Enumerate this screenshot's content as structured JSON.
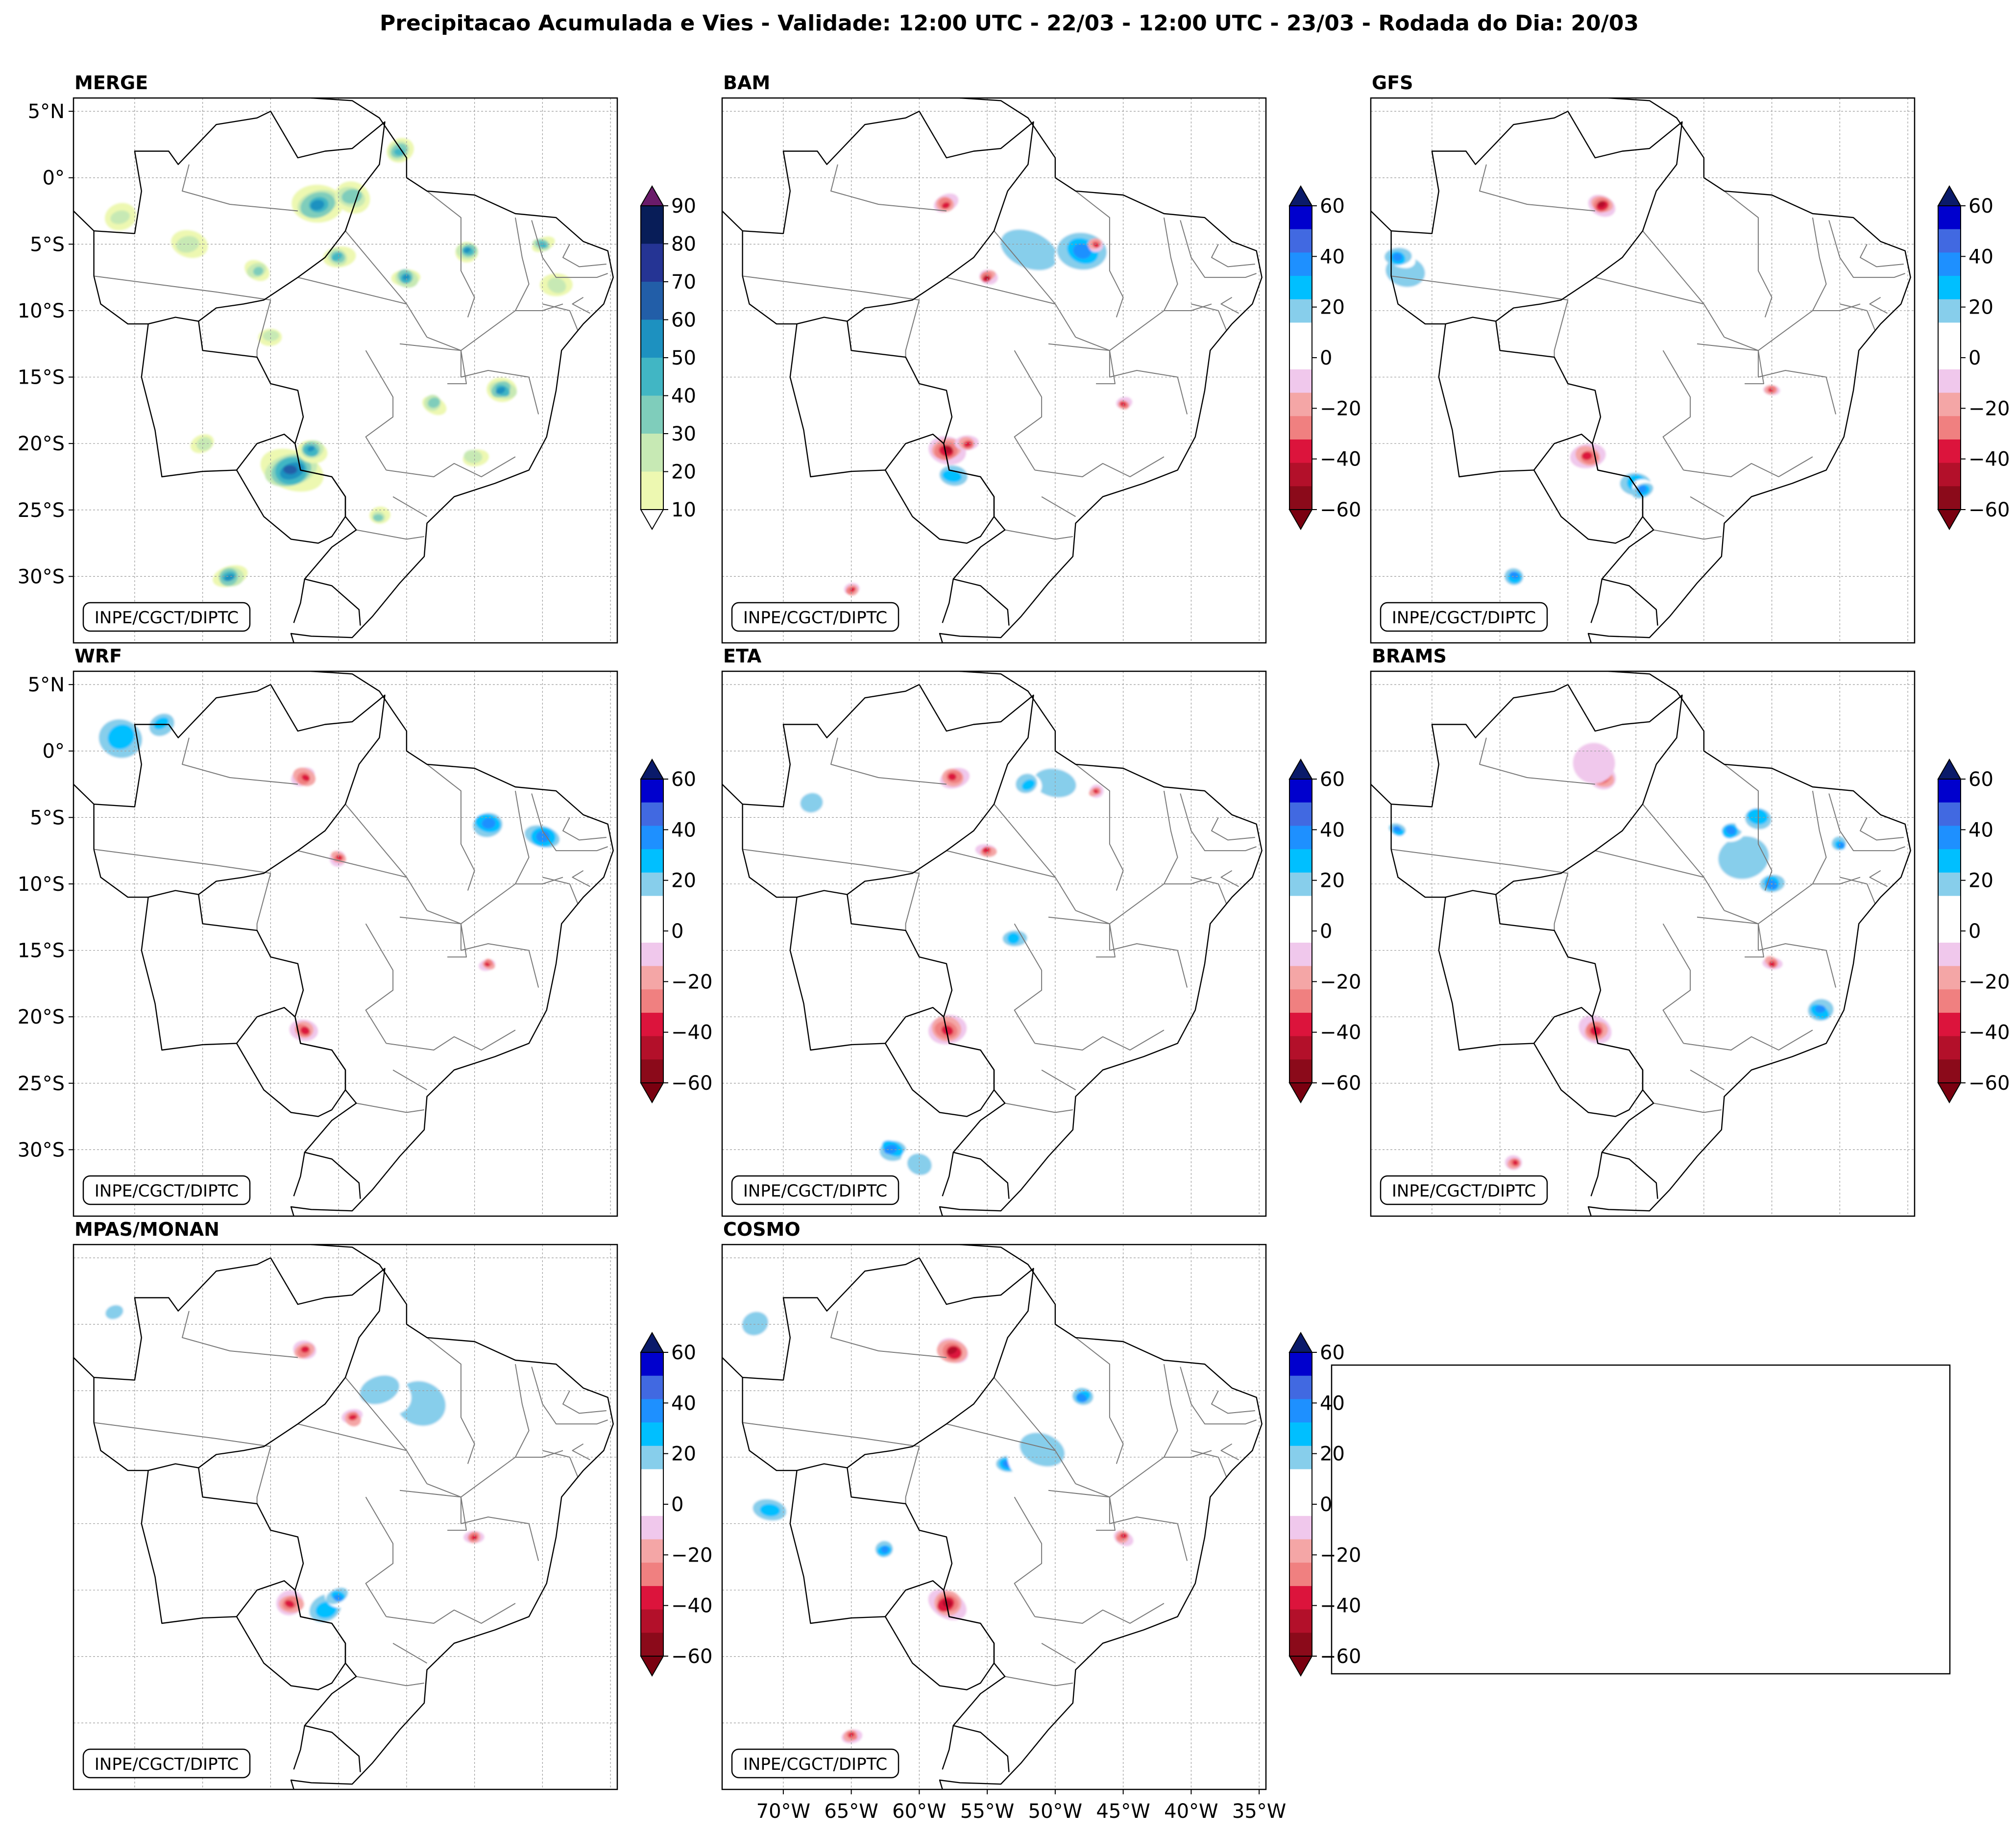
{
  "title": "Precipitacao Acumulada e Vies - Validade: 12:00 UTC - 22/03 - 12:00 UTC - 23/03 - Rodada do Dia: 20/03",
  "credit": "INPE/CGCT/DIPTC",
  "colors": {
    "frame": "#000000",
    "grid": "#9a9a9a",
    "border_country": "#000000",
    "border_state": "#7a7a7a",
    "precip_scale": [
      "#edf8b1",
      "#c7e9b4",
      "#7fcdbb",
      "#41b6c4",
      "#1d91c0",
      "#225ea8",
      "#253494",
      "#081d58"
    ],
    "precip_over": "#6a1b6a",
    "bias_scale": [
      "#8b0a1a",
      "#b3102a",
      "#dc143c",
      "#f08080",
      "#f4a6a6",
      "#f0c8ec",
      "#ffffff",
      "#ffffff",
      "#87ceeb",
      "#00bfff",
      "#1e90ff",
      "#4169e1",
      "#0000cd"
    ],
    "bias_under": "#7a0010",
    "bias_over": "#0a1a6a"
  },
  "axes": {
    "lat_ticks": [
      "5°N",
      "0°",
      "5°S",
      "10°S",
      "15°S",
      "20°S",
      "25°S",
      "30°S"
    ],
    "lon_ticks": [
      "70°W",
      "65°W",
      "60°W",
      "55°W",
      "50°W",
      "45°W",
      "40°W",
      "35°W"
    ]
  },
  "colorbars": {
    "precip": {
      "ticks": [
        "10",
        "20",
        "30",
        "40",
        "50",
        "60",
        "70",
        "80",
        "90"
      ]
    },
    "bias": {
      "ticks": [
        "60",
        "40",
        "20",
        "0",
        "−20",
        "−40",
        "−60"
      ]
    }
  },
  "chart_data": [
    {
      "type": "heatmap",
      "title": "MERGE",
      "variable": "accumulated precipitation",
      "colorbar_range": [
        10,
        90
      ],
      "blobs": [
        {
          "lon": -58.5,
          "lat": -22,
          "value": 60,
          "size": 2.2
        },
        {
          "lon": -57,
          "lat": -20.5,
          "value": 50,
          "size": 1.1
        },
        {
          "lon": -56.5,
          "lat": -2,
          "value": 55,
          "size": 1.8
        },
        {
          "lon": -54,
          "lat": -1.5,
          "value": 30,
          "size": 1.5
        },
        {
          "lon": -50.5,
          "lat": 2,
          "value": 40,
          "size": 1.1
        },
        {
          "lon": -55,
          "lat": -6,
          "value": 40,
          "size": 1.1
        },
        {
          "lon": -50,
          "lat": -7.5,
          "value": 50,
          "size": 1.0
        },
        {
          "lon": -45.5,
          "lat": -5.5,
          "value": 50,
          "size": 0.9
        },
        {
          "lon": -40,
          "lat": -5,
          "value": 40,
          "size": 0.8
        },
        {
          "lon": -43,
          "lat": -16,
          "value": 50,
          "size": 1.2
        },
        {
          "lon": -48,
          "lat": -17,
          "value": 30,
          "size": 1.0
        },
        {
          "lon": -61,
          "lat": -7,
          "value": 30,
          "size": 0.9
        },
        {
          "lon": -63,
          "lat": -30,
          "value": 50,
          "size": 1.2
        },
        {
          "lon": -52,
          "lat": -25.5,
          "value": 30,
          "size": 0.8
        },
        {
          "lon": -66,
          "lat": -5,
          "value": 20,
          "size": 1.3
        },
        {
          "lon": -71,
          "lat": -3,
          "value": 20,
          "size": 1.2
        },
        {
          "lon": -39,
          "lat": -8,
          "value": 20,
          "size": 1.1
        },
        {
          "lon": -65,
          "lat": -20,
          "value": 20,
          "size": 1.0
        },
        {
          "lon": -45,
          "lat": -21,
          "value": 20,
          "size": 1.0
        },
        {
          "lon": -60,
          "lat": -12,
          "value": 20,
          "size": 0.9
        }
      ]
    },
    {
      "type": "heatmap",
      "title": "BAM",
      "variable": "bias",
      "colorbar_range": [
        -60,
        60
      ],
      "blobs": [
        {
          "lon": -52,
          "lat": -5.5,
          "value": 25,
          "size": 3.5
        },
        {
          "lon": -48,
          "lat": -5.5,
          "value": 40,
          "size": 2.2
        },
        {
          "lon": -57,
          "lat": -24,
          "value": 15,
          "size": 3.2
        },
        {
          "lon": -57.5,
          "lat": -22.5,
          "value": 30,
          "size": 1.6
        },
        {
          "lon": -58,
          "lat": -20.5,
          "value": -50,
          "size": 1.3
        },
        {
          "lon": -56.5,
          "lat": -20,
          "value": -40,
          "size": 0.8
        },
        {
          "lon": -58,
          "lat": -2,
          "value": -40,
          "size": 0.9
        },
        {
          "lon": -55,
          "lat": -7.5,
          "value": -50,
          "size": 0.7
        },
        {
          "lon": -47,
          "lat": -5,
          "value": -40,
          "size": 0.6
        },
        {
          "lon": -64,
          "lat": -1.5,
          "value": 15,
          "size": 2.4
        },
        {
          "lon": -70,
          "lat": -5,
          "value": 15,
          "size": 2.2
        },
        {
          "lon": -61,
          "lat": -11,
          "value": 15,
          "size": 1.5
        },
        {
          "lon": -40,
          "lat": -5,
          "value": 15,
          "size": 1.3
        },
        {
          "lon": -45,
          "lat": -17,
          "value": -40,
          "size": 0.6
        },
        {
          "lon": -65,
          "lat": -31,
          "value": -40,
          "size": 0.6
        },
        {
          "lon": -53,
          "lat": -32,
          "value": 15,
          "size": 1.3
        }
      ]
    },
    {
      "type": "heatmap",
      "title": "GFS",
      "variable": "bias",
      "colorbar_range": [
        -60,
        60
      ],
      "blobs": [
        {
          "lon": -72,
          "lat": -7,
          "value": 25,
          "size": 2.8
        },
        {
          "lon": -72.5,
          "lat": -6,
          "value": 40,
          "size": 1.2
        },
        {
          "lon": -55,
          "lat": -23,
          "value": 30,
          "size": 1.8
        },
        {
          "lon": -54.5,
          "lat": -23.5,
          "value": 45,
          "size": 1.0
        },
        {
          "lon": -58.5,
          "lat": -21,
          "value": -45,
          "size": 1.3
        },
        {
          "lon": -57.5,
          "lat": -2,
          "value": -50,
          "size": 1.0
        },
        {
          "lon": -64,
          "lat": -30,
          "value": 45,
          "size": 1.0
        },
        {
          "lon": -62,
          "lat": -10,
          "value": 15,
          "size": 2.6
        },
        {
          "lon": -56,
          "lat": -12,
          "value": 15,
          "size": 2.0
        },
        {
          "lon": -45,
          "lat": -17,
          "value": 15,
          "size": 2.2
        },
        {
          "lon": -45,
          "lat": -16,
          "value": -40,
          "size": 0.6
        },
        {
          "lon": -55,
          "lat": -5,
          "value": 15,
          "size": 1.8
        },
        {
          "lon": -40,
          "lat": -5,
          "value": 15,
          "size": 1.2
        },
        {
          "lon": -70,
          "lat": -2,
          "value": 15,
          "size": 1.3
        }
      ]
    },
    {
      "type": "heatmap",
      "title": "WRF",
      "variable": "bias",
      "colorbar_range": [
        -60,
        60
      ],
      "blobs": [
        {
          "lon": -71,
          "lat": 1,
          "value": 30,
          "size": 2.4
        },
        {
          "lon": -68,
          "lat": 2,
          "value": 35,
          "size": 1.4
        },
        {
          "lon": -44,
          "lat": -5.5,
          "value": 40,
          "size": 1.5
        },
        {
          "lon": -40,
          "lat": -6.5,
          "value": 45,
          "size": 1.6
        },
        {
          "lon": -57.5,
          "lat": -2,
          "value": -45,
          "size": 1.0
        },
        {
          "lon": -55,
          "lat": -8,
          "value": -40,
          "size": 0.7
        },
        {
          "lon": -57.5,
          "lat": -21,
          "value": -45,
          "size": 1.0
        },
        {
          "lon": -60.5,
          "lat": -24.5,
          "value": 15,
          "size": 1.5
        },
        {
          "lon": -44,
          "lat": -16,
          "value": -40,
          "size": 0.6
        },
        {
          "lon": -60,
          "lat": -8,
          "value": 15,
          "size": 1.2
        },
        {
          "lon": -52,
          "lat": -10,
          "value": 15,
          "size": 1.0
        },
        {
          "lon": -46,
          "lat": -19,
          "value": 15,
          "size": 1.6
        },
        {
          "lon": -64,
          "lat": -29,
          "value": 15,
          "size": 1.0
        },
        {
          "lon": -62,
          "lat": -3,
          "value": 15,
          "size": 1.6
        }
      ]
    },
    {
      "type": "heatmap",
      "title": "ETA",
      "variable": "bias",
      "colorbar_range": [
        -60,
        60
      ],
      "blobs": [
        {
          "lon": -50,
          "lat": -2.5,
          "value": 25,
          "size": 2.5
        },
        {
          "lon": -52,
          "lat": -2.5,
          "value": 35,
          "size": 1.2
        },
        {
          "lon": -62,
          "lat": -30,
          "value": 40,
          "size": 1.4
        },
        {
          "lon": -60,
          "lat": -31,
          "value": 25,
          "size": 1.6
        },
        {
          "lon": -58,
          "lat": -21,
          "value": -45,
          "size": 1.4
        },
        {
          "lon": -57.5,
          "lat": -2,
          "value": -45,
          "size": 1.0
        },
        {
          "lon": -47,
          "lat": -3,
          "value": -40,
          "size": 0.6
        },
        {
          "lon": -55,
          "lat": -7.5,
          "value": -40,
          "size": 0.7
        },
        {
          "lon": -53,
          "lat": -14,
          "value": 30,
          "size": 1.2
        },
        {
          "lon": -68,
          "lat": -4,
          "value": 25,
          "size": 1.4
        },
        {
          "lon": -62,
          "lat": -3,
          "value": 15,
          "size": 1.8
        },
        {
          "lon": -72,
          "lat": -1,
          "value": 15,
          "size": 1.6
        },
        {
          "lon": -44,
          "lat": -21,
          "value": 15,
          "size": 1.5
        },
        {
          "lon": -70,
          "lat": -11,
          "value": 15,
          "size": 1.2
        }
      ]
    },
    {
      "type": "heatmap",
      "title": "BRAMS",
      "variable": "bias",
      "colorbar_range": [
        -60,
        60
      ],
      "blobs": [
        {
          "lon": -47,
          "lat": -8,
          "value": 20,
          "size": 3.4
        },
        {
          "lon": -45,
          "lat": -10,
          "value": 45,
          "size": 1.2
        },
        {
          "lon": -48,
          "lat": -6,
          "value": 45,
          "size": 1.1
        },
        {
          "lon": -46,
          "lat": -5,
          "value": 30,
          "size": 1.6
        },
        {
          "lon": -58,
          "lat": -21,
          "value": -45,
          "size": 1.3
        },
        {
          "lon": -57.5,
          "lat": -2,
          "value": -45,
          "size": 1.1
        },
        {
          "lon": -40,
          "lat": -7,
          "value": 45,
          "size": 0.8
        },
        {
          "lon": -41.5,
          "lat": -19.5,
          "value": 40,
          "size": 1.3
        },
        {
          "lon": -45,
          "lat": -16,
          "value": -40,
          "size": 0.7
        },
        {
          "lon": -64,
          "lat": -31,
          "value": -40,
          "size": 0.7
        },
        {
          "lon": -72.5,
          "lat": -6,
          "value": 40,
          "size": 0.8
        },
        {
          "lon": -58,
          "lat": -1,
          "value": -15,
          "size": 1.8
        }
      ]
    },
    {
      "type": "heatmap",
      "title": "MPAS/MONAN",
      "variable": "bias",
      "colorbar_range": [
        -60,
        60
      ],
      "blobs": [
        {
          "lon": -49,
          "lat": -6,
          "value": 25,
          "size": 3.4
        },
        {
          "lon": -52,
          "lat": -5,
          "value": 20,
          "size": 2.4
        },
        {
          "lon": -56,
          "lat": -21.5,
          "value": 35,
          "size": 1.7
        },
        {
          "lon": -55,
          "lat": -20.5,
          "value": 45,
          "size": 1.0
        },
        {
          "lon": -58.5,
          "lat": -21,
          "value": -45,
          "size": 1.1
        },
        {
          "lon": -57.5,
          "lat": -2,
          "value": -40,
          "size": 0.9
        },
        {
          "lon": -54,
          "lat": -7,
          "value": -45,
          "size": 0.8
        },
        {
          "lon": -45,
          "lat": -16,
          "value": -40,
          "size": 0.7
        },
        {
          "lon": -71.5,
          "lat": 1,
          "value": 25,
          "size": 1.2
        },
        {
          "lon": -47,
          "lat": -19,
          "value": 15,
          "size": 1.6
        },
        {
          "lon": -66,
          "lat": -3,
          "value": 15,
          "size": 1.5
        },
        {
          "lon": -70,
          "lat": -10,
          "value": 15,
          "size": 1.2
        }
      ]
    },
    {
      "type": "heatmap",
      "title": "COSMO",
      "variable": "bias",
      "colorbar_range": [
        -60,
        60
      ],
      "blobs": [
        {
          "lon": -53.5,
          "lat": -10.5,
          "value": 45,
          "size": 1.2
        },
        {
          "lon": -51,
          "lat": -9.5,
          "value": 20,
          "size": 2.6
        },
        {
          "lon": -48,
          "lat": -5.5,
          "value": 40,
          "size": 1.1
        },
        {
          "lon": -57.5,
          "lat": -2,
          "value": -50,
          "size": 1.3
        },
        {
          "lon": -58,
          "lat": -21,
          "value": -50,
          "size": 1.4
        },
        {
          "lon": -62.5,
          "lat": -17,
          "value": 45,
          "size": 0.9
        },
        {
          "lon": -71,
          "lat": -14,
          "value": 30,
          "size": 1.6
        },
        {
          "lon": -65,
          "lat": -31,
          "value": -45,
          "size": 0.7
        },
        {
          "lon": -58,
          "lat": -30,
          "value": 15,
          "size": 1.6
        },
        {
          "lon": -72,
          "lat": 0,
          "value": 20,
          "size": 1.8
        },
        {
          "lon": -45,
          "lat": -16,
          "value": -40,
          "size": 0.7
        },
        {
          "lon": -44,
          "lat": -4,
          "value": 15,
          "size": 1.4
        }
      ]
    }
  ]
}
